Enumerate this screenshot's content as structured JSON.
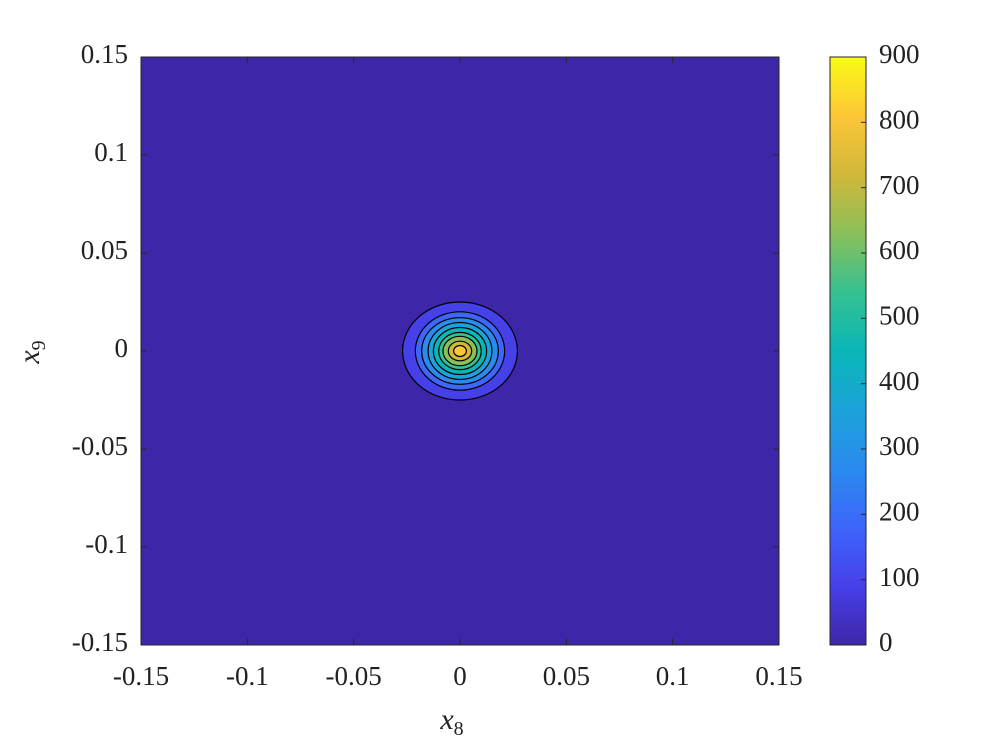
{
  "chart_data": {
    "type": "contour",
    "xlabel": "x",
    "xlabel_subscript": "8",
    "ylabel": "x",
    "ylabel_subscript": "9",
    "xlim": [
      -0.15,
      0.15
    ],
    "xticks": [
      -0.15,
      -0.1,
      -0.05,
      0,
      0.05,
      0.1,
      0.15
    ],
    "ylim": [
      -0.15,
      0.15
    ],
    "yticks": [
      -0.15,
      -0.1,
      -0.05,
      0,
      0.05,
      0.1,
      0.15
    ],
    "clim": [
      0,
      900
    ],
    "cticks": [
      0,
      100,
      200,
      300,
      400,
      500,
      600,
      700,
      800,
      900
    ],
    "colormap": [
      "#3e26a8",
      "#4640e9",
      "#3d66fb",
      "#2a8aee",
      "#1ca3d9",
      "#09b6b7",
      "#35c191",
      "#8abf5a",
      "#d2b83a",
      "#fcc637",
      "#f9fb15"
    ],
    "center": [
      0,
      0
    ],
    "contours": [
      {
        "level": 90,
        "rx": 0.027,
        "ry": 0.025
      },
      {
        "level": 180,
        "rx": 0.021,
        "ry": 0.02
      },
      {
        "level": 270,
        "rx": 0.018,
        "ry": 0.017
      },
      {
        "level": 360,
        "rx": 0.015,
        "ry": 0.0145
      },
      {
        "level": 450,
        "rx": 0.0125,
        "ry": 0.012
      },
      {
        "level": 540,
        "rx": 0.01,
        "ry": 0.0095
      },
      {
        "level": 630,
        "rx": 0.008,
        "ry": 0.0075
      },
      {
        "level": 720,
        "rx": 0.0055,
        "ry": 0.005
      },
      {
        "level": 810,
        "rx": 0.003,
        "ry": 0.0028
      }
    ]
  }
}
